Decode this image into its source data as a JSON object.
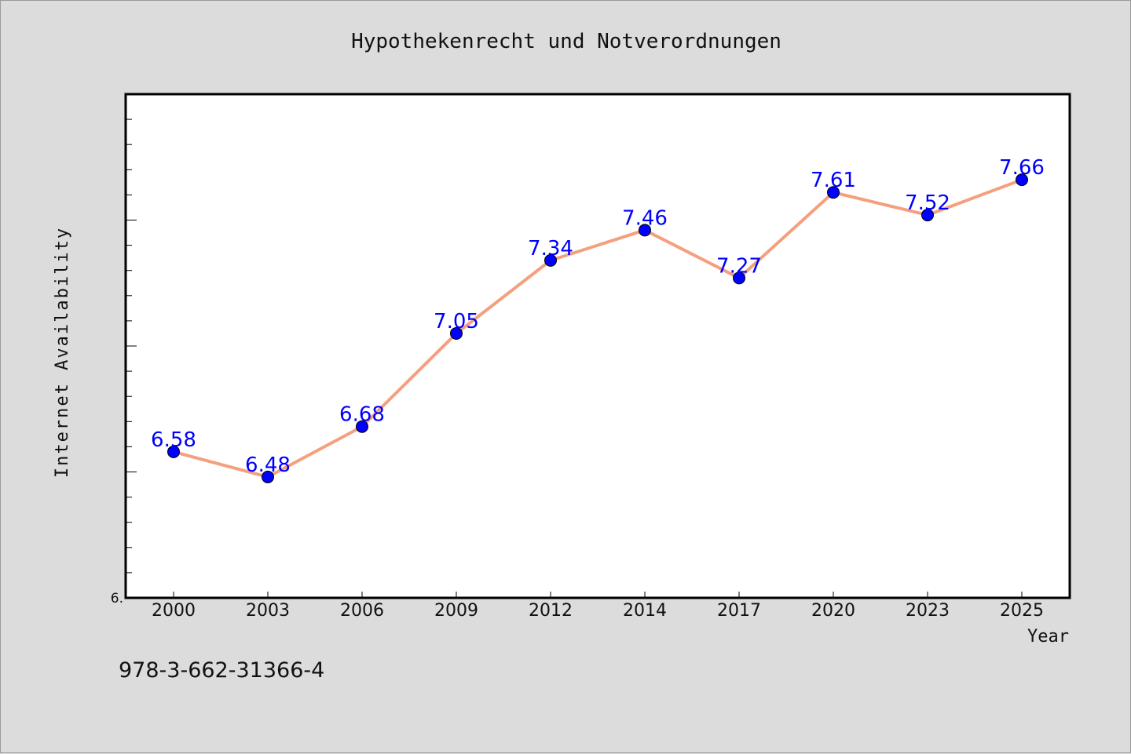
{
  "caption": "978-3-662-31366-4",
  "colors": {
    "background": "#dcdcdc",
    "plot_background": "#ffffff",
    "line": "#f4a07f",
    "marker": "#0000ff",
    "data_label": "#0000ff",
    "text": "#111111"
  },
  "chart_data": {
    "type": "line",
    "title": "Hypothekenrecht und Notverordnungen",
    "xlabel": "Year",
    "ylabel": "Internet Availability",
    "categories": [
      "2000",
      "2003",
      "2006",
      "2009",
      "2012",
      "2014",
      "2017",
      "2020",
      "2023",
      "2025"
    ],
    "series": [
      {
        "values": [
          6.58,
          6.48,
          6.68,
          7.05,
          7.34,
          7.46,
          7.27,
          7.61,
          7.52,
          7.66
        ],
        "labels": [
          "6.58",
          "6.48",
          "6.68",
          "7.05",
          "7.34",
          "7.46",
          "7.27",
          "7.61",
          "7.52",
          "7.66"
        ]
      }
    ],
    "ylim": [
      6.0,
      8.0
    ],
    "y_tick_labels": [
      "6."
    ],
    "y_minor_tick_step": 0.1,
    "grid": false,
    "legend": "none"
  }
}
